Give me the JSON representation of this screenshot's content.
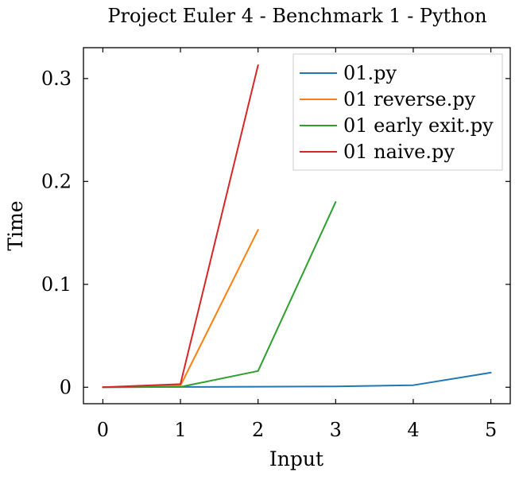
{
  "chart_data": {
    "type": "line",
    "title": "Project Euler 4 - Benchmark 1 - Python",
    "xlabel": "Input",
    "ylabel": "Time",
    "xlim": [
      -0.25,
      5.25
    ],
    "ylim": [
      -0.016,
      0.33
    ],
    "x_ticks": [
      0,
      1,
      2,
      3,
      4,
      5
    ],
    "x_tick_labels": [
      "0",
      "1",
      "2",
      "3",
      "4",
      "5"
    ],
    "y_ticks": [
      0,
      0.1,
      0.2,
      0.3
    ],
    "y_tick_labels": [
      "0",
      "0.1",
      "0.2",
      "0.3"
    ],
    "grid": false,
    "legend_position": "top-right",
    "series": [
      {
        "name": "01.py",
        "color": "#1f77b4",
        "x": [
          0,
          1,
          2,
          3,
          4,
          5
        ],
        "y": [
          0.0,
          0.0003,
          0.0005,
          0.0008,
          0.002,
          0.0142
        ]
      },
      {
        "name": "01 reverse.py",
        "color": "#ff7f0e",
        "x": [
          0,
          1,
          2
        ],
        "y": [
          0.0,
          0.0015,
          0.153
        ]
      },
      {
        "name": "01 early exit.py",
        "color": "#2ca02c",
        "x": [
          0,
          1,
          2,
          3
        ],
        "y": [
          0.0,
          0.0003,
          0.0158,
          0.18
        ]
      },
      {
        "name": "01 naive.py",
        "color": "#d62728",
        "x": [
          0,
          1,
          2
        ],
        "y": [
          0.0,
          0.003,
          0.313
        ]
      }
    ]
  }
}
